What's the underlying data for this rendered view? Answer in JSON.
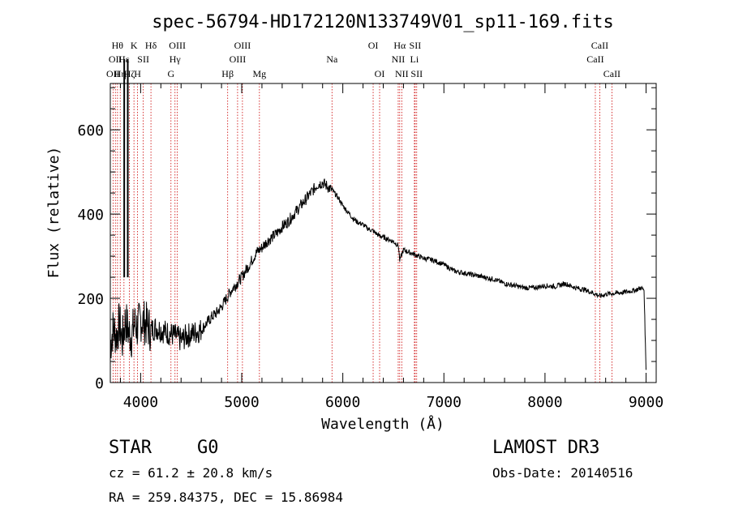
{
  "chart_data": {
    "type": "line",
    "title": "spec-56794-HD172120N133749V01_sp11-169.fits",
    "xlabel": "Wavelength (Å)",
    "ylabel": "Flux (relative)",
    "xlim": [
      3700,
      9100
    ],
    "ylim": [
      0,
      710
    ],
    "x_ticks": [
      4000,
      5000,
      6000,
      7000,
      8000,
      9000
    ],
    "x_tick_labels": [
      "4000",
      "5000",
      "6000",
      "7000",
      "8000",
      "9000"
    ],
    "y_ticks": [
      0,
      200,
      400,
      600
    ],
    "y_tick_labels": [
      "0",
      "200",
      "400",
      "600"
    ],
    "series": [
      {
        "name": "flux",
        "x": [
          3700,
          3730,
          3760,
          3790,
          3820,
          3850,
          3880,
          3910,
          3940,
          3970,
          4000,
          4050,
          4100,
          4150,
          4200,
          4250,
          4300,
          4350,
          4400,
          4450,
          4500,
          4550,
          4600,
          4650,
          4700,
          4750,
          4800,
          4850,
          4900,
          4950,
          5000,
          5050,
          5100,
          5150,
          5200,
          5250,
          5300,
          5350,
          5400,
          5450,
          5500,
          5550,
          5600,
          5650,
          5700,
          5750,
          5800,
          5850,
          5900,
          5950,
          6000,
          6050,
          6100,
          6150,
          6200,
          6250,
          6300,
          6350,
          6400,
          6450,
          6500,
          6550,
          6563,
          6600,
          6650,
          6700,
          6750,
          6800,
          6900,
          7000,
          7100,
          7200,
          7300,
          7400,
          7500,
          7600,
          7700,
          7800,
          7900,
          8000,
          8100,
          8200,
          8300,
          8400,
          8500,
          8550,
          8600,
          8700,
          8800,
          8900,
          8950,
          8980,
          8990,
          9000
        ],
        "y": [
          90,
          130,
          110,
          140,
          100,
          150,
          120,
          110,
          140,
          130,
          150,
          140,
          125,
          130,
          125,
          120,
          115,
          110,
          100,
          110,
          115,
          120,
          125,
          140,
          155,
          165,
          180,
          200,
          220,
          235,
          250,
          270,
          290,
          310,
          320,
          335,
          345,
          355,
          370,
          380,
          395,
          410,
          425,
          440,
          455,
          470,
          475,
          465,
          455,
          440,
          420,
          405,
          390,
          380,
          375,
          365,
          360,
          350,
          345,
          340,
          335,
          325,
          290,
          315,
          310,
          305,
          300,
          295,
          290,
          280,
          265,
          260,
          255,
          250,
          245,
          235,
          230,
          225,
          225,
          230,
          228,
          235,
          225,
          220,
          210,
          205,
          210,
          212,
          215,
          220,
          225,
          220,
          120,
          30
        ]
      }
    ],
    "line_labels": [
      {
        "wavelength": 3727,
        "row": 2,
        "text": "OII"
      },
      {
        "wavelength": 3750,
        "row": 1,
        "text": "OII"
      },
      {
        "wavelength": 3771,
        "row": 0,
        "text": "Hθ"
      },
      {
        "wavelength": 3798,
        "row": 2,
        "text": "Hη"
      },
      {
        "wavelength": 3835,
        "row": 1,
        "text": "Hε"
      },
      {
        "wavelength": 3889,
        "row": 2,
        "text": "Hζ"
      },
      {
        "wavelength": 3934,
        "row": 0,
        "text": "K"
      },
      {
        "wavelength": 3969,
        "row": 2,
        "text": "H"
      },
      {
        "wavelength": 4026,
        "row": 1,
        "text": "SII"
      },
      {
        "wavelength": 4102,
        "row": 0,
        "text": "Hδ"
      },
      {
        "wavelength": 4300,
        "row": 2,
        "text": "G"
      },
      {
        "wavelength": 4340,
        "row": 1,
        "text": "Hγ"
      },
      {
        "wavelength": 4363,
        "row": 0,
        "text": "OIII"
      },
      {
        "wavelength": 4861,
        "row": 2,
        "text": "Hβ"
      },
      {
        "wavelength": 4959,
        "row": 1,
        "text": "OIII"
      },
      {
        "wavelength": 5007,
        "row": 0,
        "text": "OIII"
      },
      {
        "wavelength": 5175,
        "row": 2,
        "text": "Mg"
      },
      {
        "wavelength": 5893,
        "row": 1,
        "text": "Na"
      },
      {
        "wavelength": 6300,
        "row": 0,
        "text": "OI"
      },
      {
        "wavelength": 6364,
        "row": 2,
        "text": "OI"
      },
      {
        "wavelength": 6548,
        "row": 1,
        "text": "NII"
      },
      {
        "wavelength": 6563,
        "row": 0,
        "text": "Hα"
      },
      {
        "wavelength": 6583,
        "row": 2,
        "text": "NII"
      },
      {
        "wavelength": 6708,
        "row": 1,
        "text": "Li"
      },
      {
        "wavelength": 6716,
        "row": 0,
        "text": "SII"
      },
      {
        "wavelength": 6731,
        "row": 2,
        "text": "SII"
      },
      {
        "wavelength": 8498,
        "row": 1,
        "text": "CaII"
      },
      {
        "wavelength": 8542,
        "row": 0,
        "text": "CaII"
      },
      {
        "wavelength": 8662,
        "row": 2,
        "text": "CaII"
      }
    ],
    "absorption_markers": [
      3934,
      3969
    ]
  },
  "info": {
    "class": "STAR",
    "subclass": "G0",
    "survey": "LAMOST DR3",
    "redshift": "cz = 61.2 ± 20.8 km/s",
    "obs_date": "Obs-Date: 20140516",
    "coords": "RA = 259.84375, DEC =  15.86984"
  },
  "colors": {
    "axis": "#000000",
    "spectrum": "#000000",
    "line_marker": "#cc0000"
  }
}
